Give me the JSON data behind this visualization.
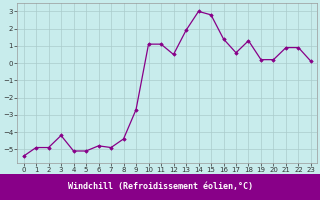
{
  "hours": [
    0,
    1,
    2,
    3,
    4,
    5,
    6,
    7,
    8,
    9,
    10,
    11,
    12,
    13,
    14,
    15,
    16,
    17,
    18,
    19,
    20,
    21,
    22,
    23
  ],
  "values": [
    -5.4,
    -4.9,
    -4.9,
    -4.2,
    -5.1,
    -5.1,
    -4.8,
    -4.9,
    -4.4,
    -2.7,
    1.1,
    1.1,
    0.5,
    1.9,
    3.0,
    2.8,
    1.4,
    0.6,
    1.3,
    0.2,
    0.2,
    0.9,
    0.9,
    0.1
  ],
  "line_color": "#880088",
  "marker": "D",
  "marker_size": 1.8,
  "bg_color": "#c8ecec",
  "grid_color": "#aacccc",
  "ylim": [
    -5.8,
    3.5
  ],
  "yticks": [
    -5,
    -4,
    -3,
    -2,
    -1,
    0,
    1,
    2,
    3
  ],
  "xlim": [
    -0.5,
    23.5
  ],
  "xticks": [
    0,
    1,
    2,
    3,
    4,
    5,
    6,
    7,
    8,
    9,
    10,
    11,
    12,
    13,
    14,
    15,
    16,
    17,
    18,
    19,
    20,
    21,
    22,
    23
  ],
  "line_width": 0.9,
  "xlabel": "Windchill (Refroidissement éolien,°C)",
  "xlabel_color": "#ffffff",
  "xlabel_bg": "#880088",
  "tick_labelsize": 5.0,
  "xlabel_fontsize": 6.0
}
